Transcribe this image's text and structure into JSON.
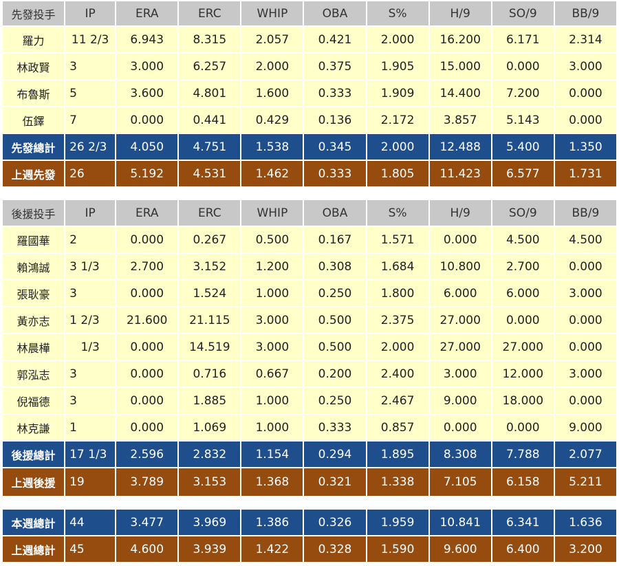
{
  "columns": [
    "IP",
    "ERA",
    "ERC",
    "WHIP",
    "OBA",
    "S%",
    "H/9",
    "SO/9",
    "BB/9"
  ],
  "starters": {
    "header_label": "先發投手",
    "rows": [
      {
        "name": "羅力",
        "values": [
          "11 2/3",
          "6.943",
          "8.315",
          "2.057",
          "0.421",
          "2.000",
          "16.200",
          "6.171",
          "2.314"
        ]
      },
      {
        "name": "林政賢",
        "values": [
          "3",
          "3.000",
          "6.257",
          "2.000",
          "0.375",
          "1.905",
          "15.000",
          "0.000",
          "3.000"
        ]
      },
      {
        "name": "布魯斯",
        "values": [
          "5",
          "3.600",
          "4.801",
          "1.600",
          "0.333",
          "1.909",
          "14.400",
          "7.200",
          "0.000"
        ]
      },
      {
        "name": "伍鐸",
        "values": [
          "7",
          "0.000",
          "0.441",
          "0.429",
          "0.136",
          "2.172",
          "3.857",
          "5.143",
          "0.000"
        ]
      }
    ],
    "total": {
      "name": "先發總計",
      "values": [
        "26 2/3",
        "4.050",
        "4.751",
        "1.538",
        "0.345",
        "2.000",
        "12.488",
        "5.400",
        "1.350"
      ]
    },
    "last_week": {
      "name": "上週先發",
      "values": [
        "26",
        "5.192",
        "4.531",
        "1.462",
        "0.333",
        "1.805",
        "11.423",
        "6.577",
        "1.731"
      ]
    }
  },
  "relievers": {
    "header_label": "後援投手",
    "rows": [
      {
        "name": "羅國華",
        "values": [
          "2",
          "0.000",
          "0.267",
          "0.500",
          "0.167",
          "1.571",
          "0.000",
          "4.500",
          "4.500"
        ]
      },
      {
        "name": "賴鴻誠",
        "values": [
          "3 1/3",
          "2.700",
          "3.152",
          "1.200",
          "0.308",
          "1.684",
          "10.800",
          "2.700",
          "0.000"
        ]
      },
      {
        "name": "張耿豪",
        "values": [
          "3",
          "0.000",
          "1.524",
          "1.000",
          "0.250",
          "1.800",
          "6.000",
          "6.000",
          "3.000"
        ]
      },
      {
        "name": "黃亦志",
        "values": [
          "1 2/3",
          "21.600",
          "21.115",
          "3.000",
          "0.500",
          "2.375",
          "27.000",
          "0.000",
          "0.000"
        ]
      },
      {
        "name": "林晨樺",
        "values": [
          "1/3",
          "0.000",
          "14.519",
          "3.000",
          "0.500",
          "2.000",
          "27.000",
          "27.000",
          "0.000"
        ]
      },
      {
        "name": "郭泓志",
        "values": [
          "3",
          "0.000",
          "0.716",
          "0.667",
          "0.200",
          "2.400",
          "3.000",
          "12.000",
          "3.000"
        ]
      },
      {
        "name": "倪福德",
        "values": [
          "3",
          "0.000",
          "1.885",
          "1.000",
          "0.250",
          "2.467",
          "9.000",
          "18.000",
          "0.000"
        ]
      },
      {
        "name": "林克謙",
        "values": [
          "1",
          "0.000",
          "1.069",
          "1.000",
          "0.333",
          "0.857",
          "0.000",
          "0.000",
          "9.000"
        ]
      }
    ],
    "total": {
      "name": "後援總計",
      "values": [
        "17 1/3",
        "2.596",
        "2.832",
        "1.154",
        "0.294",
        "1.895",
        "8.308",
        "7.788",
        "2.077"
      ]
    },
    "last_week": {
      "name": "上週後援",
      "values": [
        "19",
        "3.789",
        "3.153",
        "1.368",
        "0.321",
        "1.338",
        "7.105",
        "6.158",
        "5.211"
      ]
    }
  },
  "overall": {
    "this_week": {
      "name": "本週總計",
      "values": [
        "44",
        "3.477",
        "3.969",
        "1.386",
        "0.326",
        "1.959",
        "10.841",
        "6.341",
        "1.636"
      ]
    },
    "last_week": {
      "name": "上週總計",
      "values": [
        "45",
        "4.600",
        "3.939",
        "1.422",
        "0.328",
        "1.590",
        "9.600",
        "6.400",
        "3.200"
      ]
    }
  },
  "colors": {
    "header_bg": "#c8c8c8",
    "row_bg": "#ffffc9",
    "total_bg": "#1f4e8c",
    "last_week_bg": "#964b0f"
  }
}
